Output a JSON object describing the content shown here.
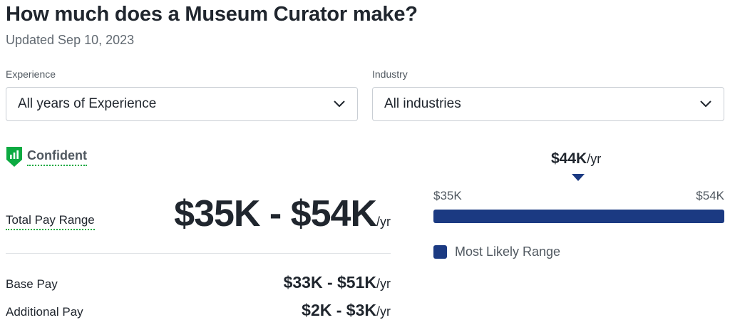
{
  "header": {
    "title": "How much does a Museum Curator make?",
    "updated": "Updated Sep 10, 2023"
  },
  "filters": {
    "experience": {
      "label": "Experience",
      "value": "All years of Experience",
      "icon": "chevron-down-icon"
    },
    "industry": {
      "label": "Industry",
      "value": "All industries",
      "icon": "chevron-down-icon"
    }
  },
  "confidence": {
    "label": "Confident",
    "icon": "confidence-shield-icon",
    "color": "#0caa41"
  },
  "pay": {
    "total": {
      "label": "Total Pay Range",
      "value": "$35K - $54K",
      "unit": "/yr"
    },
    "base": {
      "label": "Base Pay",
      "value": "$33K - $51K",
      "unit": "/yr"
    },
    "additional": {
      "label": "Additional Pay",
      "value": "$2K - $3K",
      "unit": "/yr"
    }
  },
  "range_chart": {
    "median": {
      "value": "$44K",
      "unit": "/yr"
    },
    "min_label": "$35K",
    "max_label": "$54K",
    "bar_color": "#1b3a82",
    "legend_label": "Most Likely Range"
  }
}
